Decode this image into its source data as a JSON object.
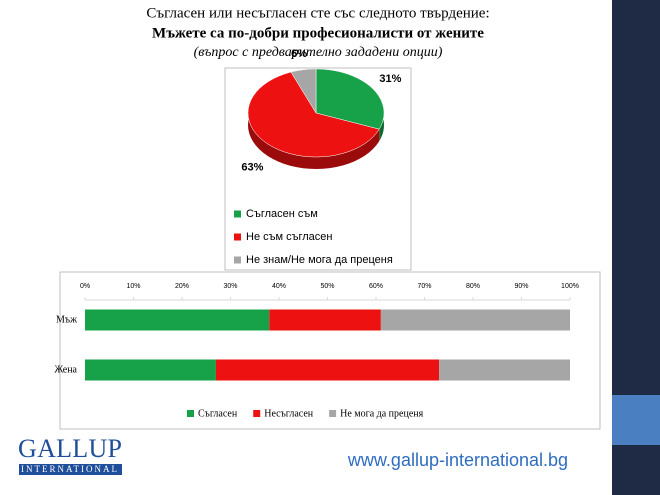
{
  "header": {
    "line1": "Съгласен или несъгласен сте със следното твърдение:",
    "line2": "Мъжете са по-добри професионалисти от жените",
    "line3": "(въпрос с предварително зададени опции)"
  },
  "chart_data": [
    {
      "type": "pie",
      "categories": [
        "Съгласен съм",
        "Не съм съгласен",
        "Не знам/Не мога да преценя"
      ],
      "values": [
        31,
        63,
        6
      ],
      "value_labels": [
        "31%",
        "63%",
        "6%"
      ],
      "colors": [
        "#17a24a",
        "#ee1111",
        "#a6a6a6"
      ]
    },
    {
      "type": "bar",
      "orientation": "horizontal",
      "stacked": true,
      "categories": [
        "Мъж",
        "Жена"
      ],
      "series": [
        {
          "name": "Съгласен",
          "color": "#17a24a",
          "values": [
            38,
            27
          ]
        },
        {
          "name": "Несъгласен",
          "color": "#ee1111",
          "values": [
            23,
            46
          ]
        },
        {
          "name": "Не мога да преценя",
          "color": "#a6a6a6",
          "values": [
            39,
            27
          ]
        }
      ],
      "xlim": [
        0,
        100
      ],
      "xticks": [
        {
          "value": 0,
          "label": "0%"
        },
        {
          "value": 10,
          "label": "10%"
        },
        {
          "value": 20,
          "label": "20%"
        },
        {
          "value": 30,
          "label": "30%"
        },
        {
          "value": 40,
          "label": "40%"
        },
        {
          "value": 50,
          "label": "50%"
        },
        {
          "value": 60,
          "label": "60%"
        },
        {
          "value": 70,
          "label": "70%"
        },
        {
          "value": 80,
          "label": "80%"
        },
        {
          "value": 90,
          "label": "90%"
        },
        {
          "value": 100,
          "label": "100%"
        }
      ]
    }
  ],
  "footer": {
    "logo": "GALLUP",
    "logo_sub": "INTERNATIONAL",
    "website": "www.gallup-international.bg"
  }
}
